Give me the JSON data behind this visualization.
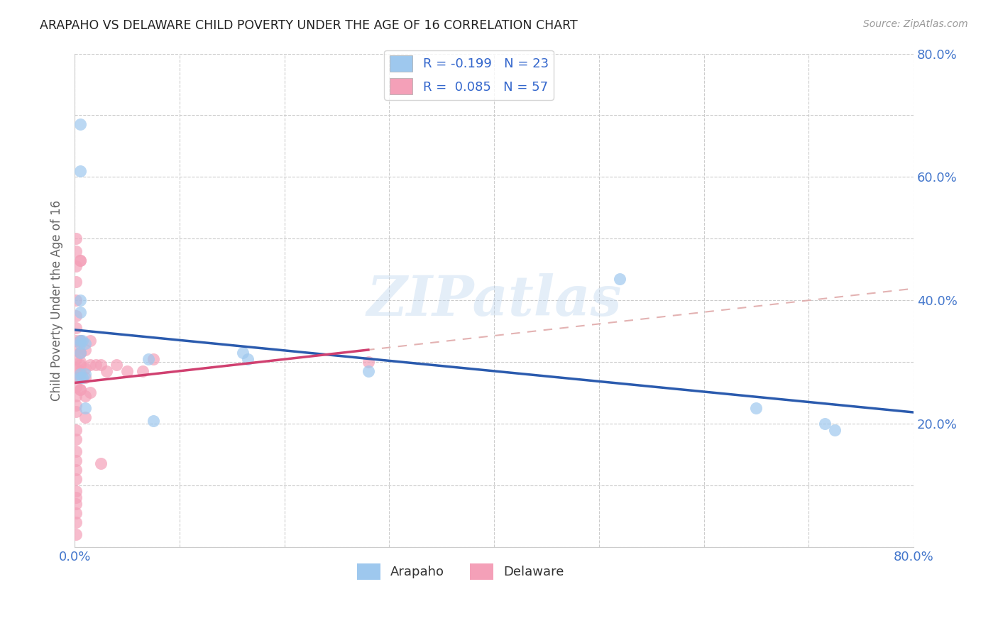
{
  "title": "ARAPAHO VS DELAWARE CHILD POVERTY UNDER THE AGE OF 16 CORRELATION CHART",
  "source": "Source: ZipAtlas.com",
  "ylabel": "Child Poverty Under the Age of 16",
  "xlim": [
    0.0,
    0.8
  ],
  "ylim": [
    0.0,
    0.8
  ],
  "xtick_vals": [
    0.0,
    0.1,
    0.2,
    0.3,
    0.4,
    0.5,
    0.6,
    0.7,
    0.8
  ],
  "ytick_vals": [
    0.0,
    0.1,
    0.2,
    0.3,
    0.4,
    0.5,
    0.6,
    0.7,
    0.8
  ],
  "xticklabels": [
    "0.0%",
    "",
    "",
    "",
    "",
    "",
    "",
    "",
    "80.0%"
  ],
  "yticklabels": [
    "",
    "",
    "20.0%",
    "",
    "40.0%",
    "",
    "60.0%",
    "",
    "80.0%"
  ],
  "arapaho_color": "#9EC8EE",
  "delaware_color": "#F4A0B8",
  "arapaho_line_color": "#2B5BAE",
  "delaware_line_color": "#D04070",
  "delaware_dash_color": "#E0AAAA",
  "legend_R_arapaho": "R = -0.199",
  "legend_N_arapaho": "N = 23",
  "legend_R_delaware": "R =  0.085",
  "legend_N_delaware": "N = 57",
  "watermark": "ZIPatlas",
  "arapaho_x": [
    0.005,
    0.005,
    0.005,
    0.005,
    0.005,
    0.005,
    0.007,
    0.007,
    0.01,
    0.01,
    0.01,
    0.07,
    0.075,
    0.16,
    0.165,
    0.28,
    0.52,
    0.65,
    0.715,
    0.725,
    0.005,
    0.005,
    0.005
  ],
  "arapaho_y": [
    0.61,
    0.335,
    0.33,
    0.315,
    0.28,
    0.275,
    0.335,
    0.275,
    0.33,
    0.28,
    0.225,
    0.305,
    0.205,
    0.315,
    0.305,
    0.285,
    0.435,
    0.225,
    0.2,
    0.19,
    0.685,
    0.38,
    0.4
  ],
  "delaware_x": [
    0.001,
    0.001,
    0.001,
    0.001,
    0.001,
    0.001,
    0.001,
    0.001,
    0.001,
    0.001,
    0.001,
    0.001,
    0.001,
    0.001,
    0.001,
    0.001,
    0.001,
    0.001,
    0.001,
    0.001,
    0.001,
    0.001,
    0.001,
    0.001,
    0.001,
    0.001,
    0.001,
    0.001,
    0.005,
    0.005,
    0.005,
    0.005,
    0.005,
    0.005,
    0.005,
    0.005,
    0.005,
    0.005,
    0.005,
    0.005,
    0.01,
    0.01,
    0.01,
    0.01,
    0.01,
    0.015,
    0.015,
    0.015,
    0.02,
    0.025,
    0.025,
    0.03,
    0.04,
    0.05,
    0.065,
    0.075,
    0.28
  ],
  "delaware_y": [
    0.5,
    0.48,
    0.455,
    0.43,
    0.4,
    0.375,
    0.355,
    0.335,
    0.32,
    0.305,
    0.29,
    0.275,
    0.26,
    0.245,
    0.23,
    0.22,
    0.19,
    0.175,
    0.155,
    0.14,
    0.125,
    0.11,
    0.09,
    0.08,
    0.07,
    0.055,
    0.04,
    0.02,
    0.335,
    0.315,
    0.3,
    0.275,
    0.255,
    0.335,
    0.315,
    0.285,
    0.255,
    0.465,
    0.465,
    0.295,
    0.32,
    0.29,
    0.275,
    0.245,
    0.21,
    0.335,
    0.295,
    0.25,
    0.295,
    0.295,
    0.135,
    0.285,
    0.295,
    0.285,
    0.285,
    0.305,
    0.3
  ],
  "background_color": "#FFFFFF",
  "grid_color": "#CCCCCC"
}
